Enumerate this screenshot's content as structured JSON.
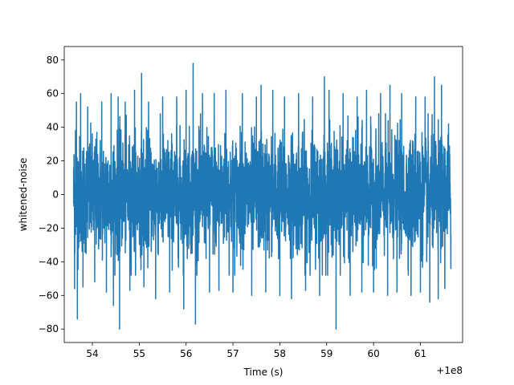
{
  "chart_data": {
    "type": "line",
    "xlabel": "Time (s)",
    "ylabel": "whitened-noise",
    "x_offset_label": "+1e8",
    "xlim": [
      53.4,
      61.9
    ],
    "ylim": [
      -88,
      88
    ],
    "x_ticks": [
      {
        "value": 54,
        "label": "54"
      },
      {
        "value": 55,
        "label": "55"
      },
      {
        "value": 56,
        "label": "56"
      },
      {
        "value": 57,
        "label": "57"
      },
      {
        "value": 58,
        "label": "58"
      },
      {
        "value": 59,
        "label": "59"
      },
      {
        "value": 60,
        "label": "60"
      },
      {
        "value": 61,
        "label": "61"
      }
    ],
    "y_ticks": [
      {
        "value": 80,
        "label": "80"
      },
      {
        "value": 60,
        "label": "60"
      },
      {
        "value": 40,
        "label": "40"
      },
      {
        "value": 20,
        "label": "20"
      },
      {
        "value": 0,
        "label": "0"
      },
      {
        "value": -20,
        "label": "−20"
      },
      {
        "value": -40,
        "label": "−40"
      },
      {
        "value": -60,
        "label": "−60"
      },
      {
        "value": -80,
        "label": "−80"
      }
    ],
    "grid": false,
    "series": [
      {
        "color": "#1f77b4",
        "x_start": 53.6,
        "x_end": 61.65,
        "points": [
          [
            53.6,
            15
          ],
          [
            53.62,
            -56
          ],
          [
            53.64,
            38
          ],
          [
            53.66,
            55
          ],
          [
            53.68,
            -74
          ],
          [
            53.75,
            60
          ],
          [
            53.8,
            -55
          ],
          [
            53.9,
            52
          ],
          [
            54.05,
            -52
          ],
          [
            54.2,
            55
          ],
          [
            54.3,
            -58
          ],
          [
            54.4,
            60
          ],
          [
            54.45,
            -66
          ],
          [
            54.55,
            58
          ],
          [
            54.58,
            -80
          ],
          [
            54.7,
            55
          ],
          [
            54.8,
            -57
          ],
          [
            54.9,
            62
          ],
          [
            55.05,
            72
          ],
          [
            55.1,
            -55
          ],
          [
            55.2,
            55
          ],
          [
            55.35,
            -62
          ],
          [
            55.5,
            58
          ],
          [
            55.65,
            -58
          ],
          [
            55.8,
            58
          ],
          [
            55.95,
            -68
          ],
          [
            56.0,
            62
          ],
          [
            56.15,
            78
          ],
          [
            56.2,
            -77
          ],
          [
            56.35,
            60
          ],
          [
            56.5,
            -58
          ],
          [
            56.6,
            60
          ],
          [
            56.7,
            -57
          ],
          [
            56.85,
            62
          ],
          [
            57.0,
            -58
          ],
          [
            57.2,
            60
          ],
          [
            57.4,
            -60
          ],
          [
            57.5,
            58
          ],
          [
            57.6,
            65
          ],
          [
            57.7,
            -58
          ],
          [
            57.85,
            62
          ],
          [
            58.0,
            -60
          ],
          [
            58.1,
            58
          ],
          [
            58.25,
            -62
          ],
          [
            58.4,
            60
          ],
          [
            58.55,
            -57
          ],
          [
            58.7,
            58
          ],
          [
            58.85,
            -60
          ],
          [
            58.95,
            70
          ],
          [
            59.05,
            62
          ],
          [
            59.2,
            -80
          ],
          [
            59.35,
            60
          ],
          [
            59.5,
            -60
          ],
          [
            59.65,
            58
          ],
          [
            59.75,
            -58
          ],
          [
            59.85,
            62
          ],
          [
            60.0,
            -58
          ],
          [
            60.15,
            60
          ],
          [
            60.3,
            -60
          ],
          [
            60.35,
            65
          ],
          [
            60.5,
            -58
          ],
          [
            60.6,
            60
          ],
          [
            60.8,
            -60
          ],
          [
            60.9,
            58
          ],
          [
            61.0,
            -58
          ],
          [
            61.1,
            58
          ],
          [
            61.2,
            -64
          ],
          [
            61.3,
            70
          ],
          [
            61.38,
            -62
          ],
          [
            61.45,
            65
          ],
          [
            61.52,
            -56
          ],
          [
            61.6,
            42
          ],
          [
            61.65,
            -44
          ]
        ]
      }
    ]
  }
}
